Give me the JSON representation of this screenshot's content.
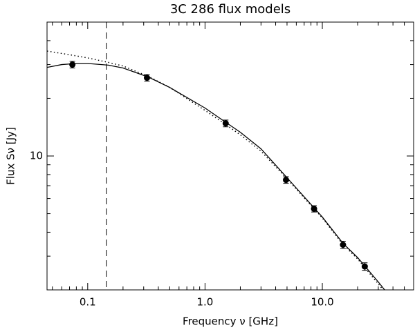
{
  "chart_data": {
    "type": "scatter",
    "title": "3C 286 flux models",
    "xlabel": "Frequency ν  [GHz]",
    "ylabel": "Flux Sν [Jy]",
    "xscale": "log",
    "yscale": "log",
    "xlim": [
      0.045,
      60
    ],
    "ylim": [
      2,
      50
    ],
    "xticks": [
      0.1,
      {
        "value": 1,
        "label": "1.0"
      },
      {
        "value": 10,
        "label": "10.0"
      }
    ],
    "x_minor_ticks": [
      0.05,
      0.06,
      0.07,
      0.08,
      0.09,
      0.2,
      0.3,
      0.4,
      0.5,
      0.6,
      0.7,
      0.8,
      0.9,
      2,
      3,
      4,
      5,
      6,
      7,
      8,
      9,
      20,
      30,
      40,
      50,
      60
    ],
    "yticks": [
      10
    ],
    "y_minor_ticks": [
      2,
      3,
      4,
      5,
      6,
      7,
      8,
      9,
      20,
      30,
      40,
      50
    ],
    "color": "#000000",
    "reference_line": {
      "x": 0.144,
      "style": "dashed"
    },
    "series": [
      {
        "style": "points",
        "x": [
          0.074,
          0.32,
          1.5,
          4.9,
          8.5,
          15,
          23
        ],
        "values": [
          30.0,
          25.6,
          14.8,
          7.5,
          5.3,
          3.44,
          2.65
        ],
        "errors": [
          1.2,
          1.0,
          0.6,
          0.3,
          0.2,
          0.15,
          0.12
        ]
      },
      {
        "style": "solid",
        "x": [
          0.045,
          0.06,
          0.08,
          0.1,
          0.15,
          0.2,
          0.33,
          0.5,
          1,
          1.5,
          2,
          3,
          5,
          10,
          15,
          20,
          30,
          34
        ],
        "values": [
          29.0,
          30.0,
          30.4,
          30.4,
          29.8,
          28.8,
          25.8,
          22.8,
          17.8,
          15.0,
          13.3,
          10.9,
          7.7,
          4.8,
          3.5,
          2.95,
          2.2,
          2.0
        ]
      },
      {
        "style": "dotted",
        "x": [
          0.045,
          0.06,
          0.08,
          0.1,
          0.15,
          0.2,
          0.33,
          0.5,
          1,
          1.5,
          2,
          3,
          5,
          10,
          15,
          20,
          30,
          34
        ],
        "values": [
          35.3,
          34.3,
          33.3,
          32.5,
          30.8,
          29.5,
          26.0,
          22.8,
          17.3,
          14.6,
          12.9,
          10.6,
          7.6,
          4.75,
          3.45,
          2.9,
          2.15,
          1.95
        ]
      }
    ]
  }
}
